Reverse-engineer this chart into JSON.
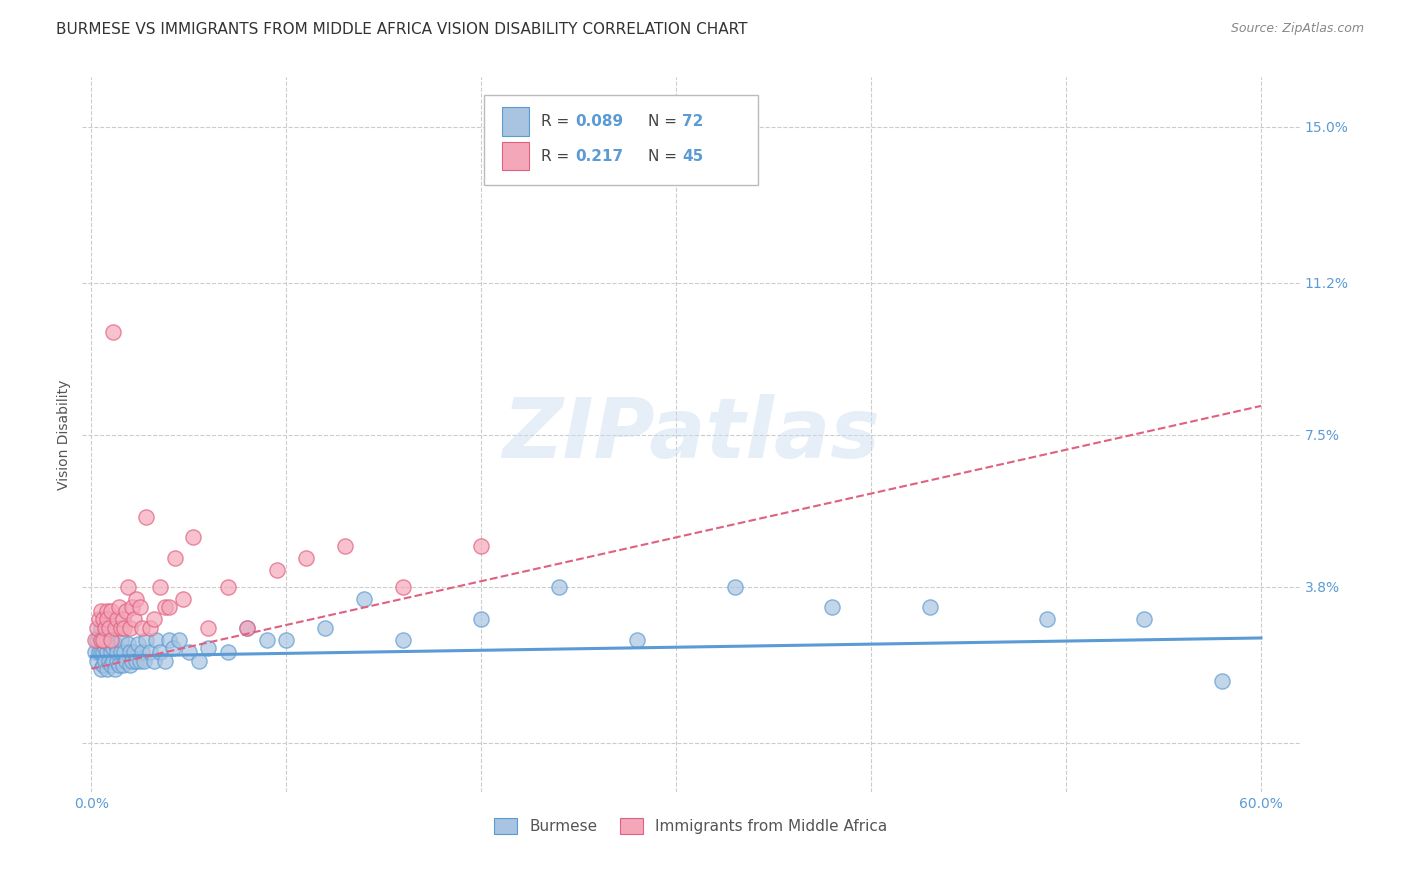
{
  "title": "BURMESE VS IMMIGRANTS FROM MIDDLE AFRICA VISION DISABILITY CORRELATION CHART",
  "source": "Source: ZipAtlas.com",
  "xlabel_burmese": "Burmese",
  "xlabel_immigrants": "Immigrants from Middle Africa",
  "ylabel": "Vision Disability",
  "watermark": "ZIPatlas",
  "xlim": [
    -0.005,
    0.62
  ],
  "ylim": [
    -0.012,
    0.162
  ],
  "xtick_positions": [
    0.0,
    0.1,
    0.2,
    0.3,
    0.4,
    0.5,
    0.6
  ],
  "xticklabels": [
    "0.0%",
    "",
    "",
    "",
    "",
    "",
    "60.0%"
  ],
  "ytick_positions": [
    0.0,
    0.038,
    0.075,
    0.112,
    0.15
  ],
  "yticklabels": [
    "",
    "3.8%",
    "7.5%",
    "11.2%",
    "15.0%"
  ],
  "R_burmese": "0.089",
  "N_burmese": "72",
  "R_immigrants": "0.217",
  "N_immigrants": "45",
  "color_burmese_fill": "#a8c4e0",
  "color_burmese_edge": "#5b9bd5",
  "color_immigrants_fill": "#f4a7b9",
  "color_immigrants_edge": "#e06080",
  "color_burmese_line": "#5b9bd5",
  "color_immigrants_line": "#e06080",
  "color_text_blue": "#5b9bd5",
  "color_grid": "#cccccc",
  "color_bg": "#ffffff",
  "burmese_scatter_x": [
    0.002,
    0.003,
    0.003,
    0.004,
    0.004,
    0.005,
    0.005,
    0.005,
    0.006,
    0.006,
    0.006,
    0.007,
    0.007,
    0.007,
    0.008,
    0.008,
    0.008,
    0.009,
    0.009,
    0.01,
    0.01,
    0.01,
    0.011,
    0.011,
    0.012,
    0.012,
    0.013,
    0.013,
    0.014,
    0.015,
    0.015,
    0.016,
    0.017,
    0.018,
    0.019,
    0.02,
    0.02,
    0.021,
    0.022,
    0.023,
    0.024,
    0.025,
    0.026,
    0.027,
    0.028,
    0.03,
    0.032,
    0.033,
    0.035,
    0.038,
    0.04,
    0.042,
    0.045,
    0.05,
    0.055,
    0.06,
    0.07,
    0.08,
    0.09,
    0.1,
    0.12,
    0.14,
    0.16,
    0.2,
    0.24,
    0.28,
    0.33,
    0.38,
    0.43,
    0.49,
    0.54,
    0.58
  ],
  "burmese_scatter_y": [
    0.022,
    0.02,
    0.025,
    0.022,
    0.026,
    0.018,
    0.022,
    0.028,
    0.019,
    0.022,
    0.026,
    0.02,
    0.023,
    0.025,
    0.018,
    0.022,
    0.025,
    0.02,
    0.024,
    0.019,
    0.022,
    0.025,
    0.02,
    0.023,
    0.018,
    0.024,
    0.02,
    0.022,
    0.019,
    0.022,
    0.025,
    0.019,
    0.022,
    0.02,
    0.024,
    0.019,
    0.022,
    0.02,
    0.022,
    0.02,
    0.024,
    0.02,
    0.022,
    0.02,
    0.025,
    0.022,
    0.02,
    0.025,
    0.022,
    0.02,
    0.025,
    0.023,
    0.025,
    0.022,
    0.02,
    0.023,
    0.022,
    0.028,
    0.025,
    0.025,
    0.028,
    0.035,
    0.025,
    0.03,
    0.038,
    0.025,
    0.038,
    0.033,
    0.033,
    0.03,
    0.03,
    0.015
  ],
  "immigrants_scatter_x": [
    0.002,
    0.003,
    0.004,
    0.005,
    0.005,
    0.006,
    0.006,
    0.007,
    0.008,
    0.008,
    0.009,
    0.01,
    0.01,
    0.011,
    0.012,
    0.013,
    0.014,
    0.015,
    0.016,
    0.017,
    0.018,
    0.019,
    0.02,
    0.021,
    0.022,
    0.023,
    0.025,
    0.026,
    0.028,
    0.03,
    0.032,
    0.035,
    0.038,
    0.04,
    0.043,
    0.047,
    0.052,
    0.06,
    0.07,
    0.08,
    0.095,
    0.11,
    0.13,
    0.16,
    0.2
  ],
  "immigrants_scatter_y": [
    0.025,
    0.028,
    0.03,
    0.025,
    0.032,
    0.03,
    0.025,
    0.028,
    0.032,
    0.03,
    0.028,
    0.032,
    0.025,
    0.1,
    0.028,
    0.03,
    0.033,
    0.028,
    0.03,
    0.028,
    0.032,
    0.038,
    0.028,
    0.033,
    0.03,
    0.035,
    0.033,
    0.028,
    0.055,
    0.028,
    0.03,
    0.038,
    0.033,
    0.033,
    0.045,
    0.035,
    0.05,
    0.028,
    0.038,
    0.028,
    0.042,
    0.045,
    0.048,
    0.038,
    0.048
  ],
  "burmese_line_x": [
    0.0,
    0.6
  ],
  "burmese_line_y": [
    0.021,
    0.0255
  ],
  "immigrants_line_x": [
    0.0,
    0.6
  ],
  "immigrants_line_y": [
    0.018,
    0.082
  ],
  "title_fontsize": 11,
  "axis_label_fontsize": 10,
  "tick_fontsize": 10,
  "legend_fontsize": 11
}
